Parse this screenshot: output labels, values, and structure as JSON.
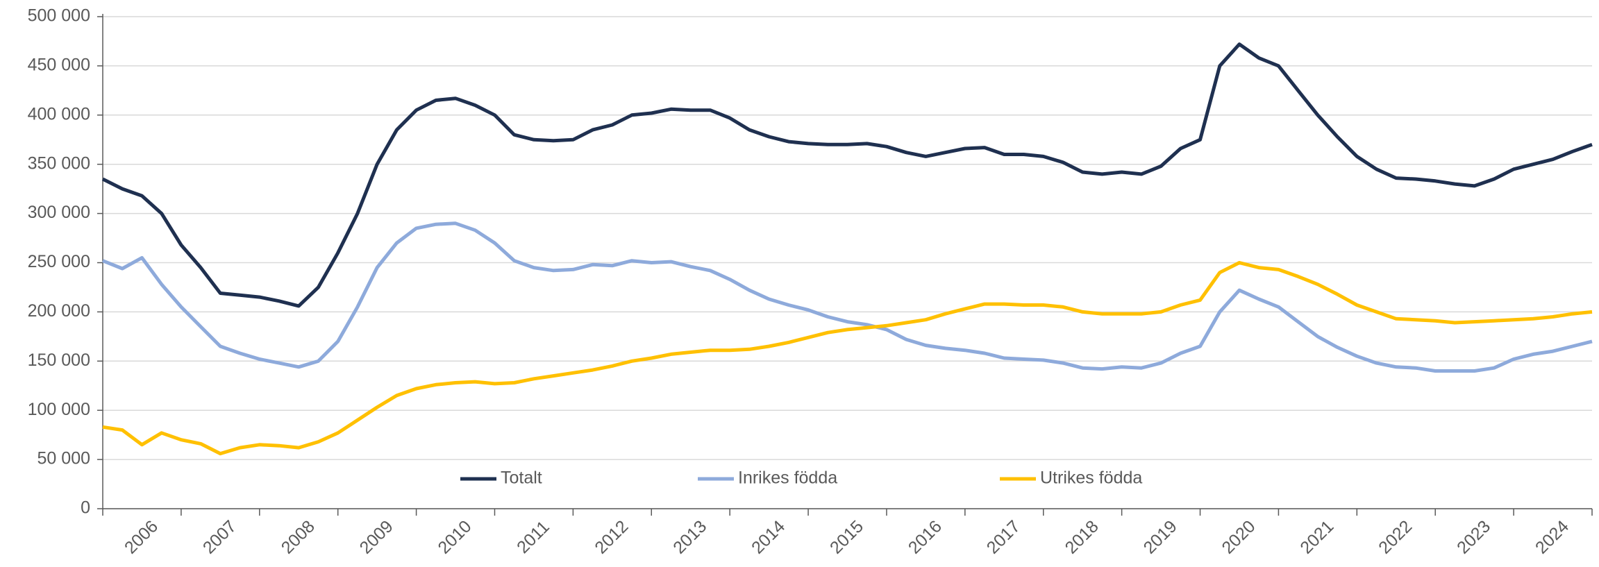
{
  "chart_data": {
    "type": "line",
    "categories": [
      "2006",
      "2007",
      "2008",
      "2009",
      "2010",
      "2011",
      "2012",
      "2013",
      "2014",
      "2015",
      "2016",
      "2017",
      "2018",
      "2019",
      "2020",
      "2021",
      "2022",
      "2023",
      "2024"
    ],
    "x": [
      2006,
      2006.25,
      2006.5,
      2006.75,
      2007,
      2007.25,
      2007.5,
      2007.75,
      2008,
      2008.25,
      2008.5,
      2008.75,
      2009,
      2009.25,
      2009.5,
      2009.75,
      2010,
      2010.25,
      2010.5,
      2010.75,
      2011,
      2011.25,
      2011.5,
      2011.75,
      2012,
      2012.25,
      2012.5,
      2012.75,
      2013,
      2013.25,
      2013.5,
      2013.75,
      2014,
      2014.25,
      2014.5,
      2014.75,
      2015,
      2015.25,
      2015.5,
      2015.75,
      2016,
      2016.25,
      2016.5,
      2016.75,
      2017,
      2017.25,
      2017.5,
      2017.75,
      2018,
      2018.25,
      2018.5,
      2018.75,
      2019,
      2019.25,
      2019.5,
      2019.75,
      2020,
      2020.25,
      2020.5,
      2020.75,
      2021,
      2021.25,
      2021.5,
      2021.75,
      2022,
      2022.25,
      2022.5,
      2022.75,
      2023,
      2023.25,
      2023.5,
      2023.75,
      2024,
      2024.25,
      2024.5,
      2024.75,
      2025
    ],
    "xlim": [
      2006,
      2025
    ],
    "series": [
      {
        "name": "Totalt",
        "color": "#1f3050",
        "values": [
          335000,
          325000,
          318000,
          300000,
          268000,
          245000,
          219000,
          217000,
          215000,
          211000,
          206000,
          225000,
          260000,
          300000,
          350000,
          385000,
          405000,
          415000,
          417000,
          410000,
          400000,
          380000,
          375000,
          374000,
          375000,
          385000,
          390000,
          400000,
          402000,
          406000,
          405000,
          405000,
          397000,
          385000,
          378000,
          373000,
          371000,
          370000,
          370000,
          371000,
          368000,
          362000,
          358000,
          362000,
          366000,
          367000,
          360000,
          360000,
          358000,
          352000,
          342000,
          340000,
          342000,
          340000,
          348000,
          366000,
          375000,
          450000,
          472000,
          458000,
          450000,
          425000,
          400000,
          378000,
          358000,
          345000,
          336000,
          335000,
          333000,
          330000,
          328000,
          335000,
          345000,
          350000,
          355000,
          363000,
          370000
        ]
      },
      {
        "name": "Inrikes födda",
        "color": "#8eaadb",
        "values": [
          252000,
          244000,
          255000,
          228000,
          205000,
          185000,
          165000,
          158000,
          152000,
          148000,
          144000,
          150000,
          170000,
          205000,
          245000,
          270000,
          285000,
          289000,
          290000,
          283000,
          270000,
          252000,
          245000,
          242000,
          243000,
          248000,
          247000,
          252000,
          250000,
          251000,
          246000,
          242000,
          233000,
          222000,
          213000,
          207000,
          202000,
          195000,
          190000,
          187000,
          182000,
          172000,
          166000,
          163000,
          161000,
          158000,
          153000,
          152000,
          151000,
          148000,
          143000,
          142000,
          144000,
          143000,
          148000,
          158000,
          165000,
          200000,
          222000,
          213000,
          205000,
          190000,
          175000,
          164000,
          155000,
          148000,
          144000,
          143000,
          140000,
          140000,
          140000,
          143000,
          152000,
          157000,
          160000,
          165000,
          170000
        ]
      },
      {
        "name": "Utrikes födda",
        "color": "#ffc000",
        "values": [
          83000,
          80000,
          65000,
          77000,
          70000,
          66000,
          56000,
          62000,
          65000,
          64000,
          62000,
          68000,
          77000,
          90000,
          103000,
          115000,
          122000,
          126000,
          128000,
          129000,
          127000,
          128000,
          132000,
          135000,
          138000,
          141000,
          145000,
          150000,
          153000,
          157000,
          159000,
          161000,
          161000,
          162000,
          165000,
          169000,
          174000,
          179000,
          182000,
          184000,
          186000,
          189000,
          192000,
          198000,
          203000,
          208000,
          208000,
          207000,
          207000,
          205000,
          200000,
          198000,
          198000,
          198000,
          200000,
          207000,
          212000,
          240000,
          250000,
          245000,
          243000,
          236000,
          228000,
          218000,
          207000,
          200000,
          193000,
          192000,
          191000,
          189000,
          190000,
          191000,
          192000,
          193000,
          195000,
          198000,
          200000
        ]
      }
    ],
    "ylim": [
      0,
      500000
    ],
    "yticks": [
      0,
      {
        "value": 50000,
        "label": "50 000"
      },
      {
        "value": 100000,
        "label": "100 000"
      },
      {
        "value": 150000,
        "label": "150 000"
      },
      {
        "value": 200000,
        "label": "200 000"
      },
      {
        "value": 250000,
        "label": "250 000"
      },
      {
        "value": 300000,
        "label": "300 000"
      },
      {
        "value": 350000,
        "label": "350 000"
      },
      {
        "value": 400000,
        "label": "400 000"
      },
      {
        "value": 450000,
        "label": "450 000"
      },
      {
        "value": 500000,
        "label": "500 000"
      }
    ],
    "grid": true,
    "legend": "bottom"
  }
}
